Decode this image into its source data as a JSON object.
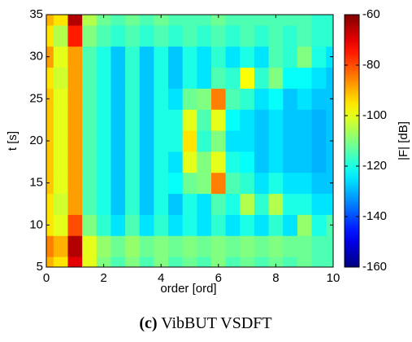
{
  "chart_data": {
    "type": "heatmap",
    "xlabel": "order [ord]",
    "ylabel": "t [s]",
    "colorbar_label": "|F| [dB]",
    "caption_label": "(c)",
    "caption": "VibBUT VSDFT",
    "colormap": "jet",
    "x": [
      0,
      0.5,
      1,
      1.5,
      2,
      2.5,
      3,
      3.5,
      4,
      4.5,
      5,
      5.5,
      6,
      6.5,
      7,
      7.5,
      8,
      8.5,
      9,
      9.5,
      10
    ],
    "y": [
      5,
      7.5,
      10,
      12.5,
      15,
      17.5,
      20,
      22.5,
      25,
      27.5,
      30,
      32.5,
      35
    ],
    "z": [
      [
        -90,
        -95,
        -70,
        -100,
        -110,
        -115,
        -110,
        -115,
        -110,
        -115,
        -112,
        -115,
        -110,
        -115,
        -112,
        -115,
        -112,
        -115,
        -112,
        -115,
        -115
      ],
      [
        -85,
        -90,
        -65,
        -100,
        -108,
        -112,
        -108,
        -112,
        -110,
        -112,
        -110,
        -112,
        -110,
        -112,
        -110,
        -112,
        -110,
        -112,
        -112,
        -115,
        -115
      ],
      [
        -95,
        -100,
        -80,
        -110,
        -118,
        -125,
        -115,
        -125,
        -118,
        -125,
        -120,
        -125,
        -118,
        -125,
        -120,
        -125,
        -118,
        -125,
        -108,
        -120,
        -115
      ],
      [
        -95,
        -102,
        -88,
        -115,
        -120,
        -128,
        -118,
        -128,
        -120,
        -128,
        -120,
        -125,
        -115,
        -120,
        -105,
        -118,
        -105,
        -120,
        -120,
        -125,
        -125
      ],
      [
        -92,
        -100,
        -88,
        -115,
        -120,
        -128,
        -118,
        -128,
        -120,
        -122,
        -112,
        -110,
        -85,
        -115,
        -118,
        -125,
        -120,
        -125,
        -125,
        -128,
        -128
      ],
      [
        -92,
        -100,
        -88,
        -115,
        -120,
        -128,
        -118,
        -128,
        -120,
        -125,
        -100,
        -110,
        -100,
        -120,
        -122,
        -128,
        -125,
        -128,
        -128,
        -130,
        -128
      ],
      [
        -92,
        -100,
        -88,
        -115,
        -120,
        -128,
        -118,
        -128,
        -120,
        -120,
        -95,
        -118,
        -110,
        -125,
        -125,
        -128,
        -125,
        -128,
        -128,
        -130,
        -128
      ],
      [
        -92,
        -100,
        -88,
        -115,
        -120,
        -128,
        -118,
        -128,
        -120,
        -120,
        -100,
        -115,
        -100,
        -122,
        -125,
        -128,
        -125,
        -128,
        -128,
        -130,
        -128
      ],
      [
        -92,
        -100,
        -88,
        -115,
        -120,
        -128,
        -118,
        -128,
        -120,
        -125,
        -112,
        -110,
        -85,
        -115,
        -118,
        -125,
        -122,
        -128,
        -125,
        -128,
        -128
      ],
      [
        -95,
        -102,
        -88,
        -115,
        -120,
        -128,
        -118,
        -128,
        -120,
        -128,
        -120,
        -125,
        -115,
        -118,
        -98,
        -118,
        -110,
        -122,
        -122,
        -125,
        -128
      ],
      [
        -88,
        -100,
        -88,
        -115,
        -120,
        -128,
        -118,
        -128,
        -120,
        -128,
        -120,
        -125,
        -118,
        -125,
        -120,
        -125,
        -115,
        -118,
        -110,
        -120,
        -125
      ],
      [
        -95,
        -105,
        -75,
        -110,
        -115,
        -118,
        -115,
        -118,
        -115,
        -118,
        -115,
        -118,
        -115,
        -118,
        -115,
        -118,
        -115,
        -118,
        -115,
        -118,
        -118
      ],
      [
        -90,
        -95,
        -65,
        -105,
        -112,
        -115,
        -112,
        -115,
        -112,
        -115,
        -115,
        -115,
        -112,
        -115,
        -115,
        -115,
        -115,
        -115,
        -115,
        -118,
        -118
      ]
    ],
    "xlim": [
      0,
      10
    ],
    "xticks": [
      0,
      2,
      4,
      6,
      8,
      10
    ],
    "ylim": [
      5,
      35
    ],
    "yticks": [
      5,
      10,
      15,
      20,
      25,
      30,
      35
    ],
    "clim": [
      -160,
      -60
    ],
    "cticks": [
      -60,
      -80,
      -100,
      -120,
      -140,
      -160
    ]
  }
}
